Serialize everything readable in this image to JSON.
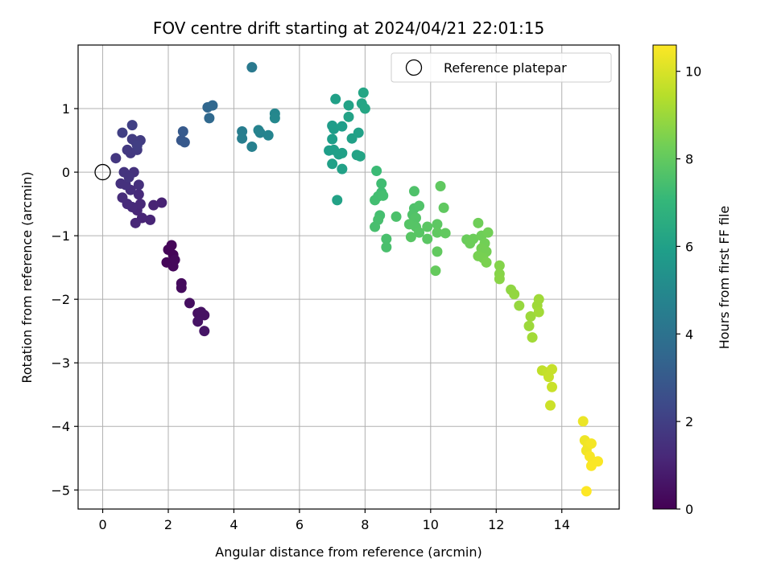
{
  "chart_data": {
    "type": "scatter",
    "title": "FOV centre drift starting at 2024/04/21 22:01:15",
    "xlabel": "Angular distance from reference (arcmin)",
    "ylabel": "Rotation from reference (arcmin)",
    "xlim": [
      -0.75,
      15.75
    ],
    "ylim": [
      -5.3,
      2.0
    ],
    "xticks": [
      0,
      2,
      4,
      6,
      8,
      10,
      12,
      14
    ],
    "yticks": [
      -5,
      -4,
      -3,
      -2,
      -1,
      0,
      1
    ],
    "xtick_labels": [
      "0",
      "2",
      "4",
      "6",
      "8",
      "10",
      "12",
      "14"
    ],
    "ytick_labels": [
      "−5",
      "−4",
      "−3",
      "−2",
      "−1",
      "0",
      "1"
    ],
    "grid": true,
    "legend": {
      "placement": "top-right",
      "entries": [
        {
          "label": "Reference platepar",
          "marker": "open-circle"
        }
      ]
    },
    "reference_point": {
      "x": 0,
      "y": 0
    },
    "colormap": "viridis",
    "colors": {
      "viridis": [
        "#440154",
        "#482878",
        "#3e4989",
        "#31688e",
        "#26828e",
        "#1f9e89",
        "#35b779",
        "#6ece58",
        "#b5de2b",
        "#fde725"
      ]
    },
    "colorbar": {
      "label": "Hours from first FF file",
      "range": [
        0,
        10.6
      ],
      "ticks": [
        0,
        2,
        4,
        6,
        8,
        10
      ],
      "tick_labels": [
        "0",
        "2",
        "4",
        "6",
        "8",
        "10"
      ]
    },
    "points": [
      {
        "x": 2.0,
        "y": -1.22,
        "c": 0.1
      },
      {
        "x": 2.1,
        "y": -1.15,
        "c": 0.15
      },
      {
        "x": 2.15,
        "y": -1.3,
        "c": 0.1
      },
      {
        "x": 1.95,
        "y": -1.42,
        "c": 0.15
      },
      {
        "x": 2.15,
        "y": -1.48,
        "c": 0.2
      },
      {
        "x": 2.2,
        "y": -1.38,
        "c": 0.2
      },
      {
        "x": 2.4,
        "y": -1.75,
        "c": 0.3
      },
      {
        "x": 2.4,
        "y": -1.82,
        "c": 0.3
      },
      {
        "x": 2.65,
        "y": -2.06,
        "c": 0.4
      },
      {
        "x": 2.9,
        "y": -2.22,
        "c": 0.45
      },
      {
        "x": 3.0,
        "y": -2.2,
        "c": 0.5
      },
      {
        "x": 3.1,
        "y": -2.25,
        "c": 0.5
      },
      {
        "x": 2.9,
        "y": -2.35,
        "c": 0.55
      },
      {
        "x": 3.1,
        "y": -2.5,
        "c": 0.6
      },
      {
        "x": 1.8,
        "y": -0.48,
        "c": 1.0
      },
      {
        "x": 1.55,
        "y": -0.52,
        "c": 1.05
      },
      {
        "x": 1.45,
        "y": -0.75,
        "c": 1.1
      },
      {
        "x": 1.2,
        "y": -0.72,
        "c": 1.1
      },
      {
        "x": 1.05,
        "y": -0.6,
        "c": 1.15
      },
      {
        "x": 1.0,
        "y": -0.8,
        "c": 1.15
      },
      {
        "x": 1.15,
        "y": -0.5,
        "c": 1.2
      },
      {
        "x": 0.9,
        "y": -0.55,
        "c": 1.25
      },
      {
        "x": 1.1,
        "y": -0.35,
        "c": 1.3
      },
      {
        "x": 0.75,
        "y": -0.5,
        "c": 1.3
      },
      {
        "x": 0.6,
        "y": -0.4,
        "c": 1.35
      },
      {
        "x": 0.85,
        "y": -0.28,
        "c": 1.4
      },
      {
        "x": 1.1,
        "y": -0.2,
        "c": 1.45
      },
      {
        "x": 0.55,
        "y": -0.18,
        "c": 1.5
      },
      {
        "x": 0.7,
        "y": -0.2,
        "c": 1.5
      },
      {
        "x": 0.95,
        "y": 0.0,
        "c": 1.55
      },
      {
        "x": 0.65,
        "y": 0.0,
        "c": 1.6
      },
      {
        "x": 0.8,
        "y": -0.08,
        "c": 1.6
      },
      {
        "x": 0.4,
        "y": 0.22,
        "c": 1.7
      },
      {
        "x": 0.85,
        "y": 0.3,
        "c": 1.75
      },
      {
        "x": 0.75,
        "y": 0.35,
        "c": 1.8
      },
      {
        "x": 1.05,
        "y": 0.35,
        "c": 1.8
      },
      {
        "x": 1.0,
        "y": 0.48,
        "c": 1.85
      },
      {
        "x": 1.15,
        "y": 0.5,
        "c": 1.9
      },
      {
        "x": 0.9,
        "y": 0.52,
        "c": 1.9
      },
      {
        "x": 0.6,
        "y": 0.62,
        "c": 2.0
      },
      {
        "x": 0.9,
        "y": 0.74,
        "c": 2.05
      },
      {
        "x": 1.05,
        "y": 0.42,
        "c": 1.95
      },
      {
        "x": 2.4,
        "y": 0.5,
        "c": 2.9
      },
      {
        "x": 2.5,
        "y": 0.47,
        "c": 2.95
      },
      {
        "x": 2.45,
        "y": 0.64,
        "c": 3.0
      },
      {
        "x": 3.2,
        "y": 1.02,
        "c": 3.5
      },
      {
        "x": 3.35,
        "y": 1.05,
        "c": 3.55
      },
      {
        "x": 3.25,
        "y": 0.85,
        "c": 3.6
      },
      {
        "x": 4.25,
        "y": 0.64,
        "c": 4.5
      },
      {
        "x": 4.25,
        "y": 0.53,
        "c": 4.55
      },
      {
        "x": 4.55,
        "y": 0.4,
        "c": 4.6
      },
      {
        "x": 4.55,
        "y": 1.65,
        "c": 4.3
      },
      {
        "x": 4.8,
        "y": 0.62,
        "c": 4.7
      },
      {
        "x": 4.75,
        "y": 0.66,
        "c": 4.75
      },
      {
        "x": 5.05,
        "y": 0.58,
        "c": 4.8
      },
      {
        "x": 5.25,
        "y": 0.92,
        "c": 4.9
      },
      {
        "x": 5.25,
        "y": 0.85,
        "c": 4.95
      },
      {
        "x": 7.1,
        "y": 1.15,
        "c": 6.0
      },
      {
        "x": 7.5,
        "y": 1.05,
        "c": 6.1
      },
      {
        "x": 7.5,
        "y": 0.87,
        "c": 6.1
      },
      {
        "x": 7.95,
        "y": 1.25,
        "c": 6.2
      },
      {
        "x": 7.9,
        "y": 1.08,
        "c": 6.2
      },
      {
        "x": 8.0,
        "y": 1.0,
        "c": 6.25
      },
      {
        "x": 7.0,
        "y": 0.73,
        "c": 5.8
      },
      {
        "x": 7.05,
        "y": 0.68,
        "c": 5.85
      },
      {
        "x": 7.3,
        "y": 0.72,
        "c": 5.9
      },
      {
        "x": 7.6,
        "y": 0.53,
        "c": 6.0
      },
      {
        "x": 7.8,
        "y": 0.62,
        "c": 6.05
      },
      {
        "x": 7.0,
        "y": 0.52,
        "c": 5.9
      },
      {
        "x": 6.9,
        "y": 0.34,
        "c": 5.9
      },
      {
        "x": 7.05,
        "y": 0.35,
        "c": 5.95
      },
      {
        "x": 7.2,
        "y": 0.28,
        "c": 6.0
      },
      {
        "x": 7.3,
        "y": 0.3,
        "c": 6.0
      },
      {
        "x": 7.75,
        "y": 0.27,
        "c": 6.1
      },
      {
        "x": 7.85,
        "y": 0.25,
        "c": 6.15
      },
      {
        "x": 7.0,
        "y": 0.13,
        "c": 6.0
      },
      {
        "x": 7.3,
        "y": 0.05,
        "c": 6.05
      },
      {
        "x": 7.15,
        "y": -0.44,
        "c": 6.1
      },
      {
        "x": 8.35,
        "y": 0.02,
        "c": 7.2
      },
      {
        "x": 8.5,
        "y": -0.18,
        "c": 7.3
      },
      {
        "x": 8.5,
        "y": -0.32,
        "c": 7.3
      },
      {
        "x": 8.4,
        "y": -0.38,
        "c": 7.35
      },
      {
        "x": 8.3,
        "y": -0.44,
        "c": 7.35
      },
      {
        "x": 8.55,
        "y": -0.37,
        "c": 7.4
      },
      {
        "x": 8.45,
        "y": -0.68,
        "c": 7.4
      },
      {
        "x": 8.4,
        "y": -0.75,
        "c": 7.45
      },
      {
        "x": 8.3,
        "y": -0.86,
        "c": 7.45
      },
      {
        "x": 8.65,
        "y": -1.05,
        "c": 7.5
      },
      {
        "x": 8.65,
        "y": -1.18,
        "c": 7.5
      },
      {
        "x": 8.95,
        "y": -0.7,
        "c": 7.55
      },
      {
        "x": 9.5,
        "y": -0.3,
        "c": 7.6
      },
      {
        "x": 9.5,
        "y": -0.57,
        "c": 7.6
      },
      {
        "x": 9.65,
        "y": -0.53,
        "c": 7.65
      },
      {
        "x": 9.45,
        "y": -0.67,
        "c": 7.65
      },
      {
        "x": 9.55,
        "y": -0.72,
        "c": 7.7
      },
      {
        "x": 9.45,
        "y": -0.8,
        "c": 7.7
      },
      {
        "x": 9.35,
        "y": -0.82,
        "c": 7.75
      },
      {
        "x": 9.55,
        "y": -0.86,
        "c": 7.75
      },
      {
        "x": 9.4,
        "y": -1.02,
        "c": 7.8
      },
      {
        "x": 9.65,
        "y": -0.95,
        "c": 7.8
      },
      {
        "x": 9.9,
        "y": -0.86,
        "c": 7.85
      },
      {
        "x": 9.9,
        "y": -1.05,
        "c": 7.85
      },
      {
        "x": 10.2,
        "y": -0.82,
        "c": 7.9
      },
      {
        "x": 10.3,
        "y": -0.22,
        "c": 7.95
      },
      {
        "x": 10.4,
        "y": -0.56,
        "c": 7.95
      },
      {
        "x": 10.2,
        "y": -0.95,
        "c": 7.95
      },
      {
        "x": 10.45,
        "y": -0.96,
        "c": 8.0
      },
      {
        "x": 10.2,
        "y": -1.25,
        "c": 8.0
      },
      {
        "x": 10.15,
        "y": -1.55,
        "c": 8.05
      },
      {
        "x": 11.1,
        "y": -1.06,
        "c": 8.15
      },
      {
        "x": 11.2,
        "y": -1.12,
        "c": 8.2
      },
      {
        "x": 11.3,
        "y": -1.05,
        "c": 8.2
      },
      {
        "x": 11.45,
        "y": -0.8,
        "c": 8.25
      },
      {
        "x": 11.55,
        "y": -1.0,
        "c": 8.25
      },
      {
        "x": 11.65,
        "y": -1.12,
        "c": 8.3
      },
      {
        "x": 11.75,
        "y": -0.95,
        "c": 8.3
      },
      {
        "x": 11.55,
        "y": -1.2,
        "c": 8.35
      },
      {
        "x": 11.7,
        "y": -1.25,
        "c": 8.35
      },
      {
        "x": 11.45,
        "y": -1.32,
        "c": 8.4
      },
      {
        "x": 11.6,
        "y": -1.35,
        "c": 8.4
      },
      {
        "x": 11.7,
        "y": -1.42,
        "c": 8.45
      },
      {
        "x": 12.1,
        "y": -1.47,
        "c": 8.6
      },
      {
        "x": 12.1,
        "y": -1.6,
        "c": 8.65
      },
      {
        "x": 12.1,
        "y": -1.68,
        "c": 8.7
      },
      {
        "x": 12.45,
        "y": -1.85,
        "c": 8.8
      },
      {
        "x": 12.55,
        "y": -1.92,
        "c": 8.85
      },
      {
        "x": 12.7,
        "y": -2.1,
        "c": 8.9
      },
      {
        "x": 13.05,
        "y": -2.27,
        "c": 9.0
      },
      {
        "x": 13.0,
        "y": -2.42,
        "c": 9.0
      },
      {
        "x": 13.25,
        "y": -2.1,
        "c": 9.05
      },
      {
        "x": 13.3,
        "y": -2.0,
        "c": 9.05
      },
      {
        "x": 13.3,
        "y": -2.2,
        "c": 9.1
      },
      {
        "x": 13.1,
        "y": -2.6,
        "c": 9.1
      },
      {
        "x": 13.4,
        "y": -3.12,
        "c": 9.6
      },
      {
        "x": 13.55,
        "y": -3.15,
        "c": 9.65
      },
      {
        "x": 13.7,
        "y": -3.1,
        "c": 9.7
      },
      {
        "x": 13.6,
        "y": -3.22,
        "c": 9.7
      },
      {
        "x": 13.7,
        "y": -3.38,
        "c": 9.75
      },
      {
        "x": 13.65,
        "y": -3.67,
        "c": 9.8
      },
      {
        "x": 14.65,
        "y": -3.92,
        "c": 10.3
      },
      {
        "x": 14.7,
        "y": -4.22,
        "c": 10.35
      },
      {
        "x": 14.8,
        "y": -4.3,
        "c": 10.4
      },
      {
        "x": 14.75,
        "y": -4.38,
        "c": 10.4
      },
      {
        "x": 14.9,
        "y": -4.27,
        "c": 10.45
      },
      {
        "x": 14.85,
        "y": -4.47,
        "c": 10.5
      },
      {
        "x": 14.95,
        "y": -4.55,
        "c": 10.5
      },
      {
        "x": 14.9,
        "y": -4.62,
        "c": 10.55
      },
      {
        "x": 15.1,
        "y": -4.55,
        "c": 10.55
      },
      {
        "x": 14.75,
        "y": -5.02,
        "c": 10.6
      }
    ]
  }
}
